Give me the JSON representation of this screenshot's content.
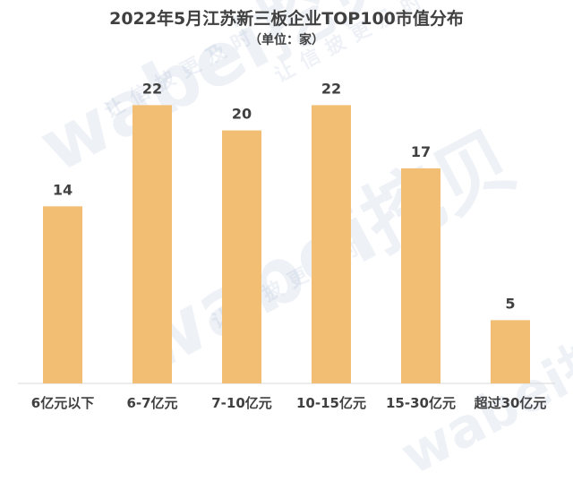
{
  "chart_data": {
    "type": "bar",
    "title": "2022年5月江苏新三板企业TOP100市值分布",
    "subtitle": "（单位：家）",
    "categories": [
      "6亿元以下",
      "6-7亿元",
      "7-10亿元",
      "10-15亿元",
      "15-30亿元",
      "超过30亿元"
    ],
    "values": [
      14,
      22,
      20,
      22,
      17,
      5
    ],
    "ylim": [
      0,
      25
    ],
    "grid": false,
    "bar_color": "#F2BE73",
    "axis_color": "#D9D9D9",
    "data_labels": true
  },
  "watermark": {
    "brand": "wabei挖贝",
    "tagline": "让信披更及时"
  }
}
